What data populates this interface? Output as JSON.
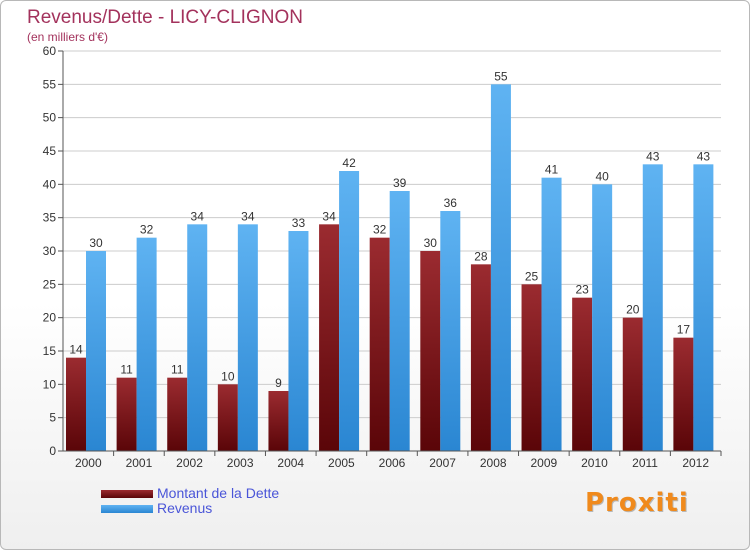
{
  "chart_data": {
    "type": "bar",
    "title": "Revenus/Dette - LICY-CLIGNON",
    "subtitle": "(en milliers d'€)",
    "categories": [
      "2000",
      "2001",
      "2002",
      "2003",
      "2004",
      "2005",
      "2006",
      "2007",
      "2008",
      "2009",
      "2010",
      "2011",
      "2012"
    ],
    "series": [
      {
        "name": "Montant de la Dette",
        "color": "#7a1015",
        "values": [
          14,
          11,
          11,
          10,
          9,
          34,
          32,
          30,
          28,
          25,
          23,
          20,
          17
        ]
      },
      {
        "name": "Revenus",
        "color": "#3f9ae6",
        "values": [
          30,
          32,
          34,
          34,
          33,
          42,
          39,
          36,
          55,
          41,
          40,
          43,
          43
        ]
      }
    ],
    "ylim": [
      0,
      60
    ],
    "yticks": [
      0,
      5,
      10,
      15,
      20,
      25,
      30,
      35,
      40,
      45,
      50,
      55,
      60
    ],
    "grid": true,
    "legend": "bottom-left"
  },
  "branding": {
    "logo_text": "Proxiti"
  }
}
